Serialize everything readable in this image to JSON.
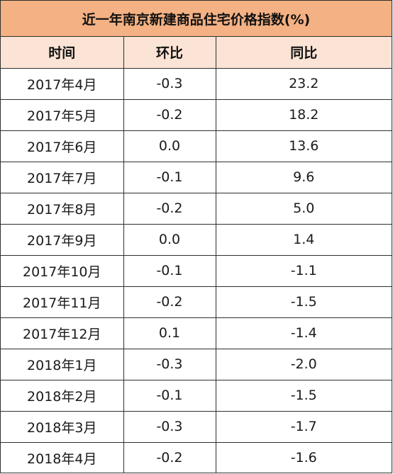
{
  "table": {
    "title": "近一年南京新建商品住宅价格指数(%)",
    "headers": [
      "时间",
      "环比",
      "同比"
    ],
    "rows": [
      [
        "2017年4月",
        "-0.3",
        "23.2"
      ],
      [
        "2017年5月",
        "-0.2",
        "18.2"
      ],
      [
        "2017年6月",
        "0.0",
        "13.6"
      ],
      [
        "2017年7月",
        "-0.1",
        "9.6"
      ],
      [
        "2017年8月",
        "-0.2",
        "5.0"
      ],
      [
        "2017年9月",
        "0.0",
        "1.4"
      ],
      [
        "2017年10月",
        "-0.1",
        "-1.1"
      ],
      [
        "2017年11月",
        "-0.2",
        "-1.5"
      ],
      [
        "2017年12月",
        "0.1",
        "-1.4"
      ],
      [
        "2018年1月",
        "-0.3",
        "-2.0"
      ],
      [
        "2018年2月",
        "-0.1",
        "-1.5"
      ],
      [
        "2018年3月",
        "-0.3",
        "-1.7"
      ],
      [
        "2018年4月",
        "-0.2",
        "-1.6"
      ]
    ]
  },
  "colors": {
    "title_bg": "#f4b183",
    "header_bg": "#fbe4d5",
    "border": "#2f2f2f"
  }
}
